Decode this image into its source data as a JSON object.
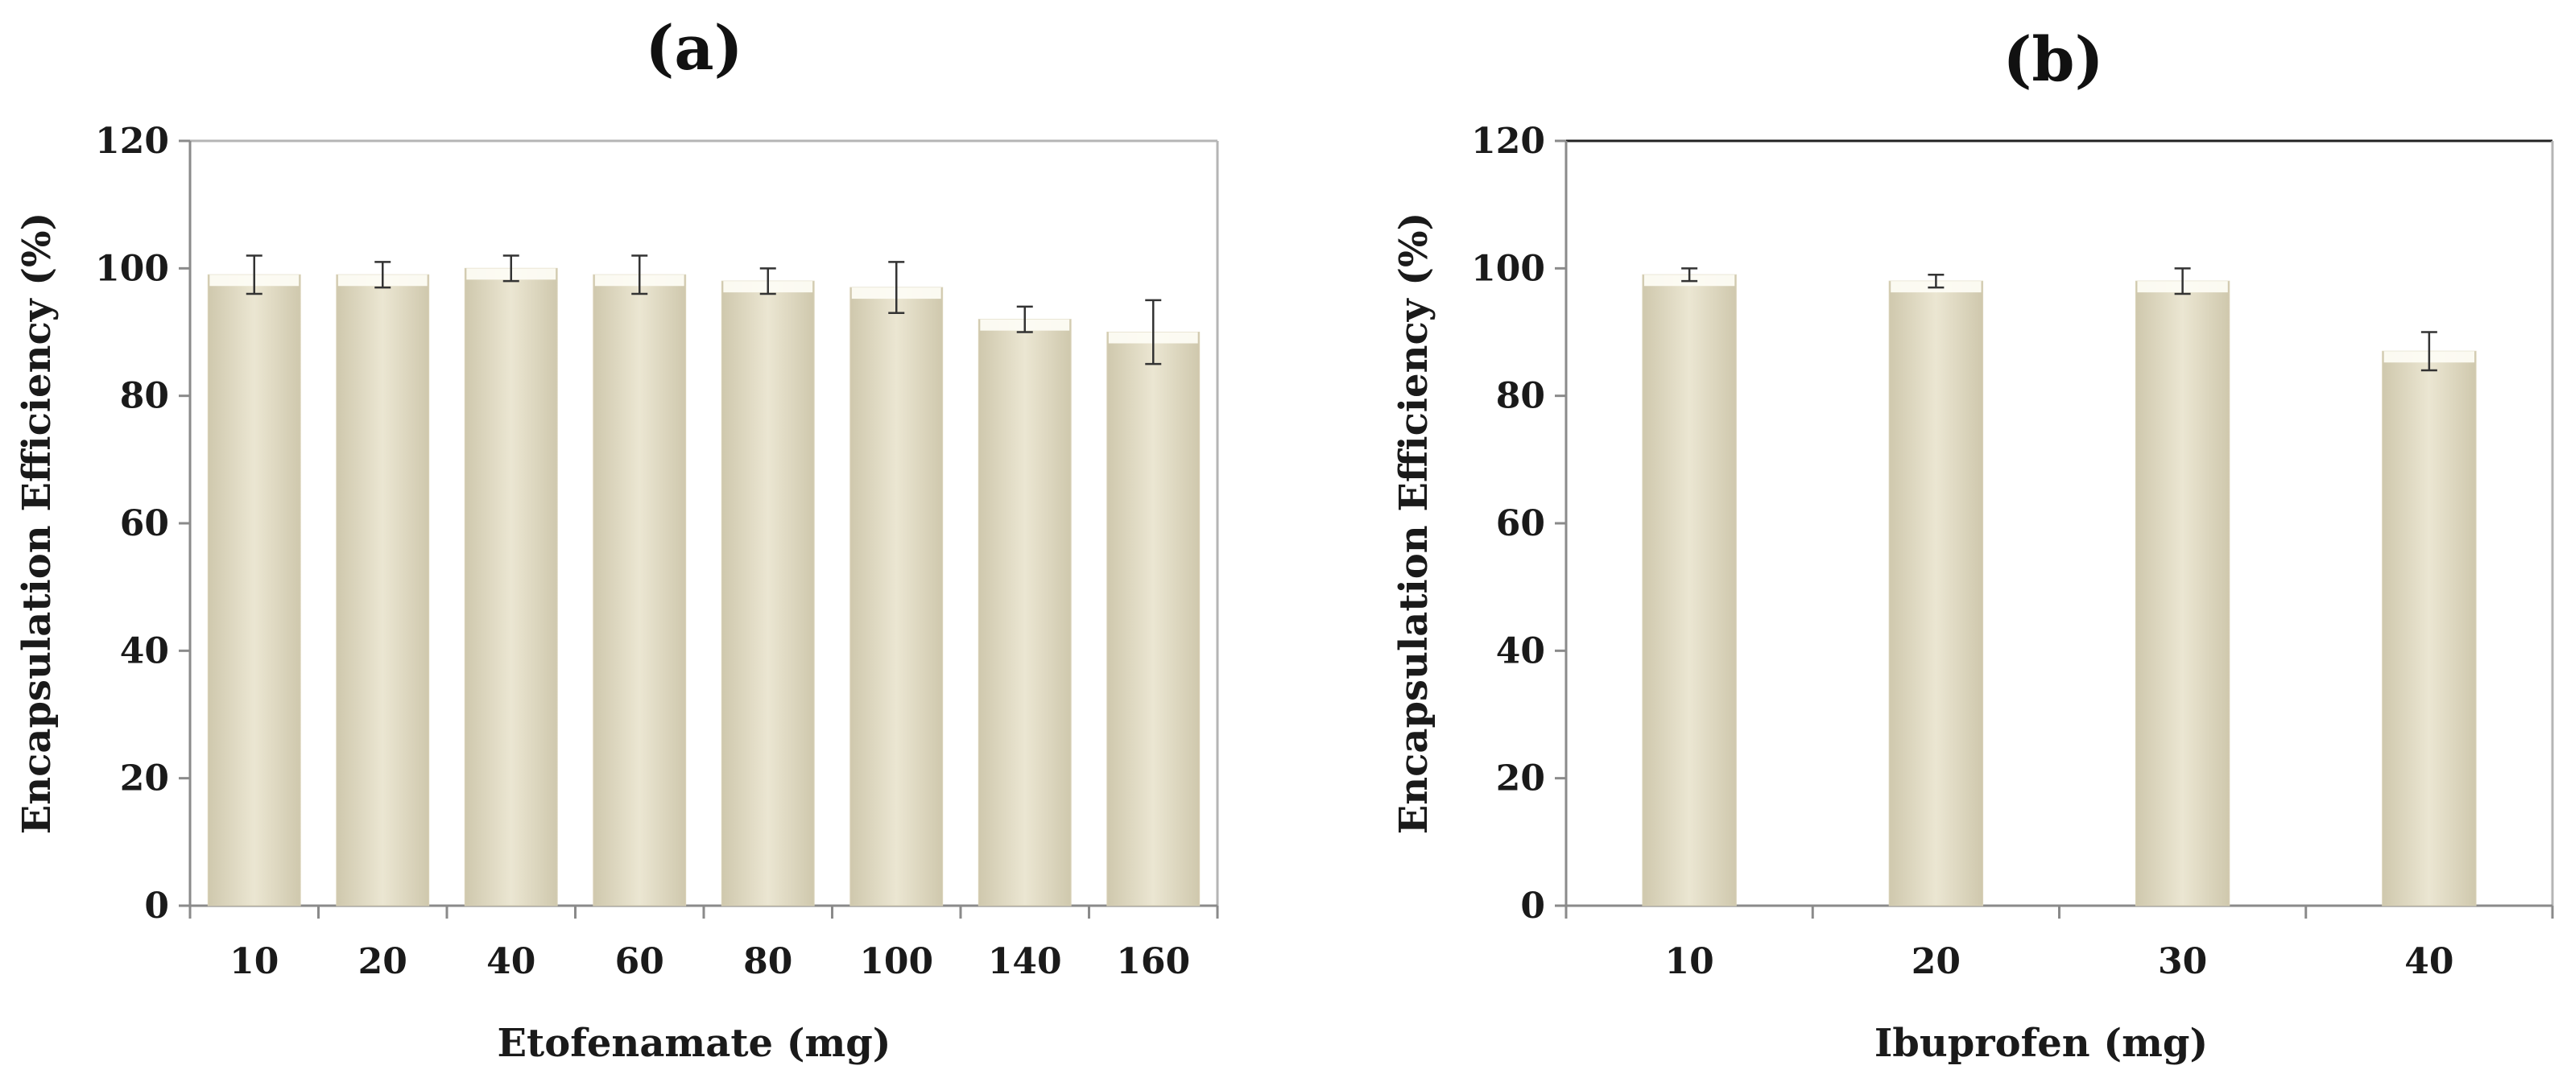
{
  "chart_data": [
    {
      "type": "bar",
      "title": "(a)",
      "categories": [
        "10",
        "20",
        "40",
        "60",
        "80",
        "100",
        "140",
        "160"
      ],
      "series": [
        {
          "name": "Encapsulation Efficiency",
          "values": [
            99,
            99,
            100,
            99,
            98,
            97,
            92,
            90
          ],
          "errors": [
            3,
            2,
            2,
            3,
            2,
            4,
            2,
            5
          ]
        }
      ],
      "xlabel": "Etofenamate (mg)",
      "ylabel": "Encapsulation  Efficiency (%)",
      "ylim": [
        0,
        120
      ],
      "yticks": [
        0,
        20,
        40,
        60,
        80,
        100,
        120
      ],
      "grid": false,
      "legend": "none"
    },
    {
      "type": "bar",
      "title": "(b)",
      "categories": [
        "10",
        "20",
        "30",
        "40"
      ],
      "series": [
        {
          "name": "Encapsulation Efficiency",
          "values": [
            99,
            98,
            98,
            87
          ],
          "errors": [
            1,
            1,
            2,
            3
          ]
        }
      ],
      "xlabel": "Ibuprofen (mg)",
      "ylabel": "Encapsulation  Efficiency (%)",
      "ylim": [
        0,
        120
      ],
      "yticks": [
        0,
        20,
        40,
        60,
        80,
        100,
        120
      ],
      "grid": false,
      "legend": "none"
    }
  ],
  "colors": {
    "bar_fill": "#ebe6d2",
    "bar_highlight": "#fdfcf4",
    "bar_shadow": "#cfc8ad",
    "axis": "#8a8a8a",
    "frame": "#b5b5b5",
    "text": "#1a1a1a",
    "error_bar": "#333333"
  }
}
